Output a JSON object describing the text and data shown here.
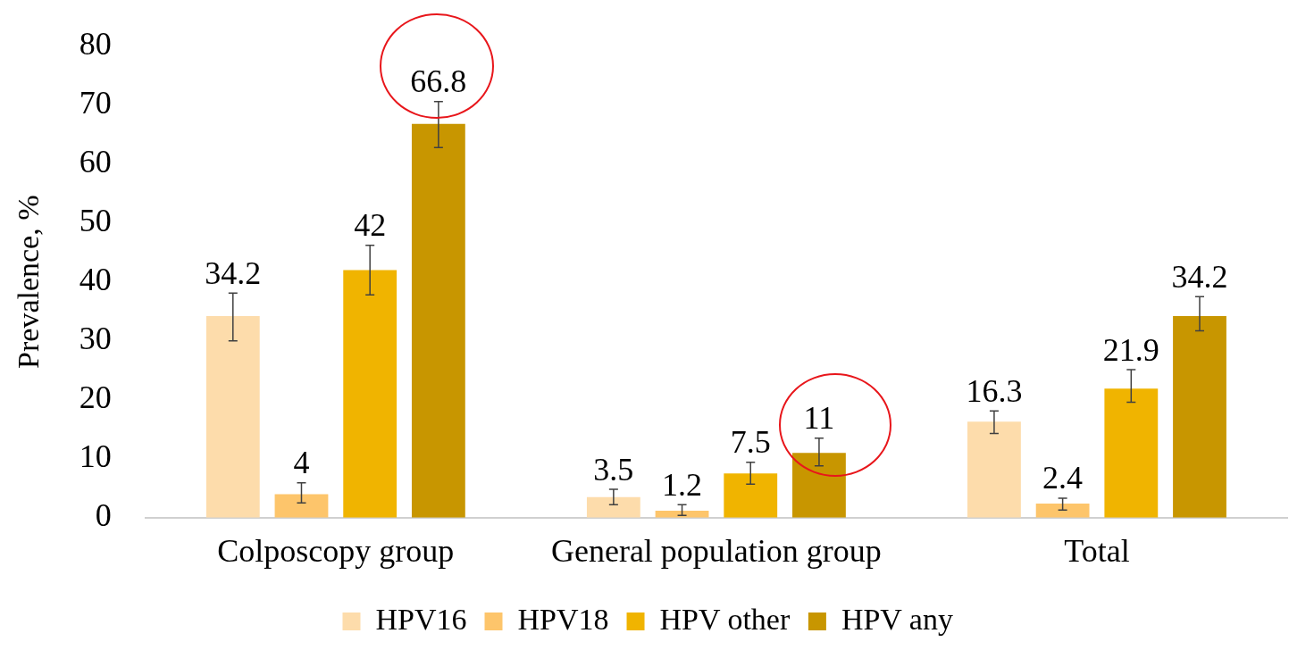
{
  "chart_data": {
    "type": "bar",
    "ylabel": "Prevalence, %",
    "categories": [
      "Colposcopy group",
      "General population group",
      "Total"
    ],
    "series": [
      {
        "name": "HPV16",
        "color": "#fddcab",
        "values": [
          34.2,
          3.5,
          16.3
        ],
        "errors": [
          [
            30.0,
            38.1
          ],
          [
            2.2,
            4.8
          ],
          [
            14.3,
            18.1
          ]
        ]
      },
      {
        "name": "HPV18",
        "color": "#fdc56b",
        "values": [
          4,
          1.2,
          2.4
        ],
        "errors": [
          [
            2.5,
            5.9
          ],
          [
            0.4,
            2.2
          ],
          [
            1.3,
            3.3
          ]
        ]
      },
      {
        "name": "HPV other",
        "color": "#f0b400",
        "values": [
          42,
          7.5,
          21.9
        ],
        "errors": [
          [
            37.8,
            46.2
          ],
          [
            5.7,
            9.4
          ],
          [
            19.6,
            25.1
          ]
        ]
      },
      {
        "name": "HPV any",
        "color": "#c89600",
        "values": [
          66.8,
          11,
          34.2
        ],
        "errors": [
          [
            62.8,
            70.6
          ],
          [
            8.8,
            13.5
          ],
          [
            31.7,
            37.5
          ]
        ]
      }
    ],
    "ylim": [
      0,
      80
    ],
    "yticks": [
      0,
      10,
      20,
      30,
      40,
      50,
      60,
      70,
      80
    ],
    "grid": false,
    "legend": "bottom",
    "data_labels": true
  }
}
